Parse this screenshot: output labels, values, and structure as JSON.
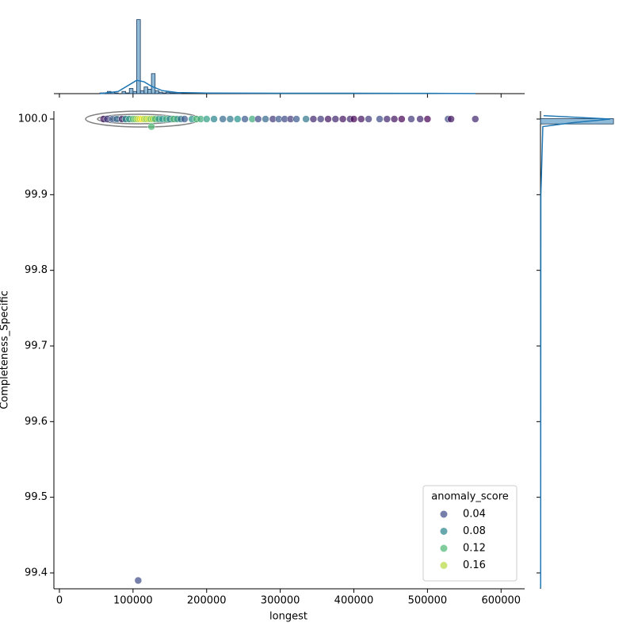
{
  "chart_data": {
    "type": "scatter",
    "x_label": "longest",
    "y_label": "Completeness_Specific",
    "xlim": [
      -7500,
      632000
    ],
    "ylim": [
      99.379,
      100.0105
    ],
    "xticks": [
      0,
      100000,
      200000,
      300000,
      400000,
      500000,
      600000
    ],
    "yticks": [
      {
        "value": 99.4,
        "label": "99.4"
      },
      {
        "value": 99.5,
        "label": "99.5"
      },
      {
        "value": 99.6,
        "label": "99.6"
      },
      {
        "value": 99.7,
        "label": "99.7"
      },
      {
        "value": 99.8,
        "label": "99.8"
      },
      {
        "value": 99.9,
        "label": "99.9"
      },
      {
        "value": 100.0,
        "label": "100.0"
      }
    ],
    "x": [
      60000,
      65000,
      72000,
      78000,
      85000,
      90000,
      95000,
      100000,
      103000,
      106000,
      109000,
      112000,
      115000,
      118000,
      121000,
      124000,
      127000,
      130000,
      135000,
      140000,
      145000,
      150000,
      155000,
      160000,
      165000,
      170000,
      180000,
      186000,
      192000,
      200000,
      210000,
      222000,
      232000,
      242000,
      252000,
      262000,
      270000,
      280000,
      290000,
      298000,
      306000,
      314000,
      322000,
      335000,
      345000,
      355000,
      365000,
      375000,
      385000,
      395000,
      400000,
      410000,
      420000,
      435000,
      445000,
      455000,
      465000,
      478000,
      490000,
      500000,
      528000,
      532000,
      565000,
      107000,
      125000
    ],
    "y": [
      100,
      100,
      100,
      100,
      100,
      100,
      100,
      100,
      100,
      100,
      100,
      100,
      100,
      100,
      100,
      100,
      100,
      100,
      100,
      100,
      100,
      100,
      100,
      100,
      100,
      100,
      100,
      100,
      100,
      100,
      100,
      100,
      100,
      100,
      100,
      100,
      100,
      100,
      100,
      100,
      100,
      100,
      100,
      100,
      100,
      100,
      100,
      100,
      100,
      100,
      100,
      100,
      100,
      100,
      100,
      100,
      100,
      100,
      100,
      100,
      100,
      100,
      100,
      99.39,
      99.99
    ],
    "hue": [
      0.01,
      0.03,
      0.05,
      0.06,
      0.02,
      0.08,
      0.1,
      0.12,
      0.14,
      0.16,
      0.17,
      0.18,
      0.16,
      0.15,
      0.17,
      0.14,
      0.16,
      0.12,
      0.1,
      0.09,
      0.11,
      0.08,
      0.12,
      0.1,
      0.07,
      0.05,
      0.09,
      0.12,
      0.11,
      0.1,
      0.08,
      0.06,
      0.07,
      0.09,
      0.05,
      0.11,
      0.04,
      0.06,
      0.03,
      0.05,
      0.04,
      0.03,
      0.05,
      0.07,
      0.02,
      0.03,
      0.01,
      0.02,
      0.01,
      0.02,
      0.0,
      0.01,
      0.03,
      0.04,
      0.02,
      0.01,
      0.0,
      0.03,
      0.02,
      0.0,
      0.04,
      0.01,
      0.02,
      0.04,
      0.12
    ],
    "hue_name": "anomaly_score",
    "hue_norm": [
      0,
      0.18
    ],
    "palette": [
      "#440154",
      "#3b528b",
      "#21918c",
      "#5ec962",
      "#fde725"
    ],
    "legend_values": [
      0.04,
      0.08,
      0.12,
      0.16
    ],
    "legend_loc": "lower right",
    "top_hist": {
      "bins": [
        55000,
        60000,
        65000,
        70000,
        75000,
        80000,
        85000,
        90000,
        95000,
        100000,
        105000,
        110000,
        115000,
        120000,
        125000,
        130000,
        135000,
        140000,
        145000,
        150000,
        155000,
        160000,
        165000
      ],
      "counts": [
        1,
        1,
        3,
        2,
        1,
        0,
        3,
        1,
        7,
        3,
        100,
        4,
        9,
        6,
        27,
        4,
        2,
        1,
        2,
        1,
        1,
        1
      ],
      "ylim": [
        0,
        105
      ],
      "kde_x": [
        55000,
        80000,
        95000,
        105000,
        115000,
        125000,
        140000,
        160000,
        200000,
        300000,
        400000,
        500000,
        565000
      ],
      "kde_y": [
        0,
        3,
        12,
        18,
        16,
        10,
        4,
        1.5,
        0.8,
        0.6,
        0.5,
        0.4,
        0.2
      ]
    },
    "right_hist": {
      "bins": [
        99.9935,
        100.0005
      ],
      "counts": [
        940
      ],
      "xlim": [
        0,
        1000
      ],
      "kde_y": [
        99.38,
        99.9,
        99.99,
        99.995,
        100.0,
        100.0045
      ],
      "kde_x": [
        2,
        5,
        30,
        400,
        900,
        40
      ]
    },
    "color": "#1f77b4"
  }
}
